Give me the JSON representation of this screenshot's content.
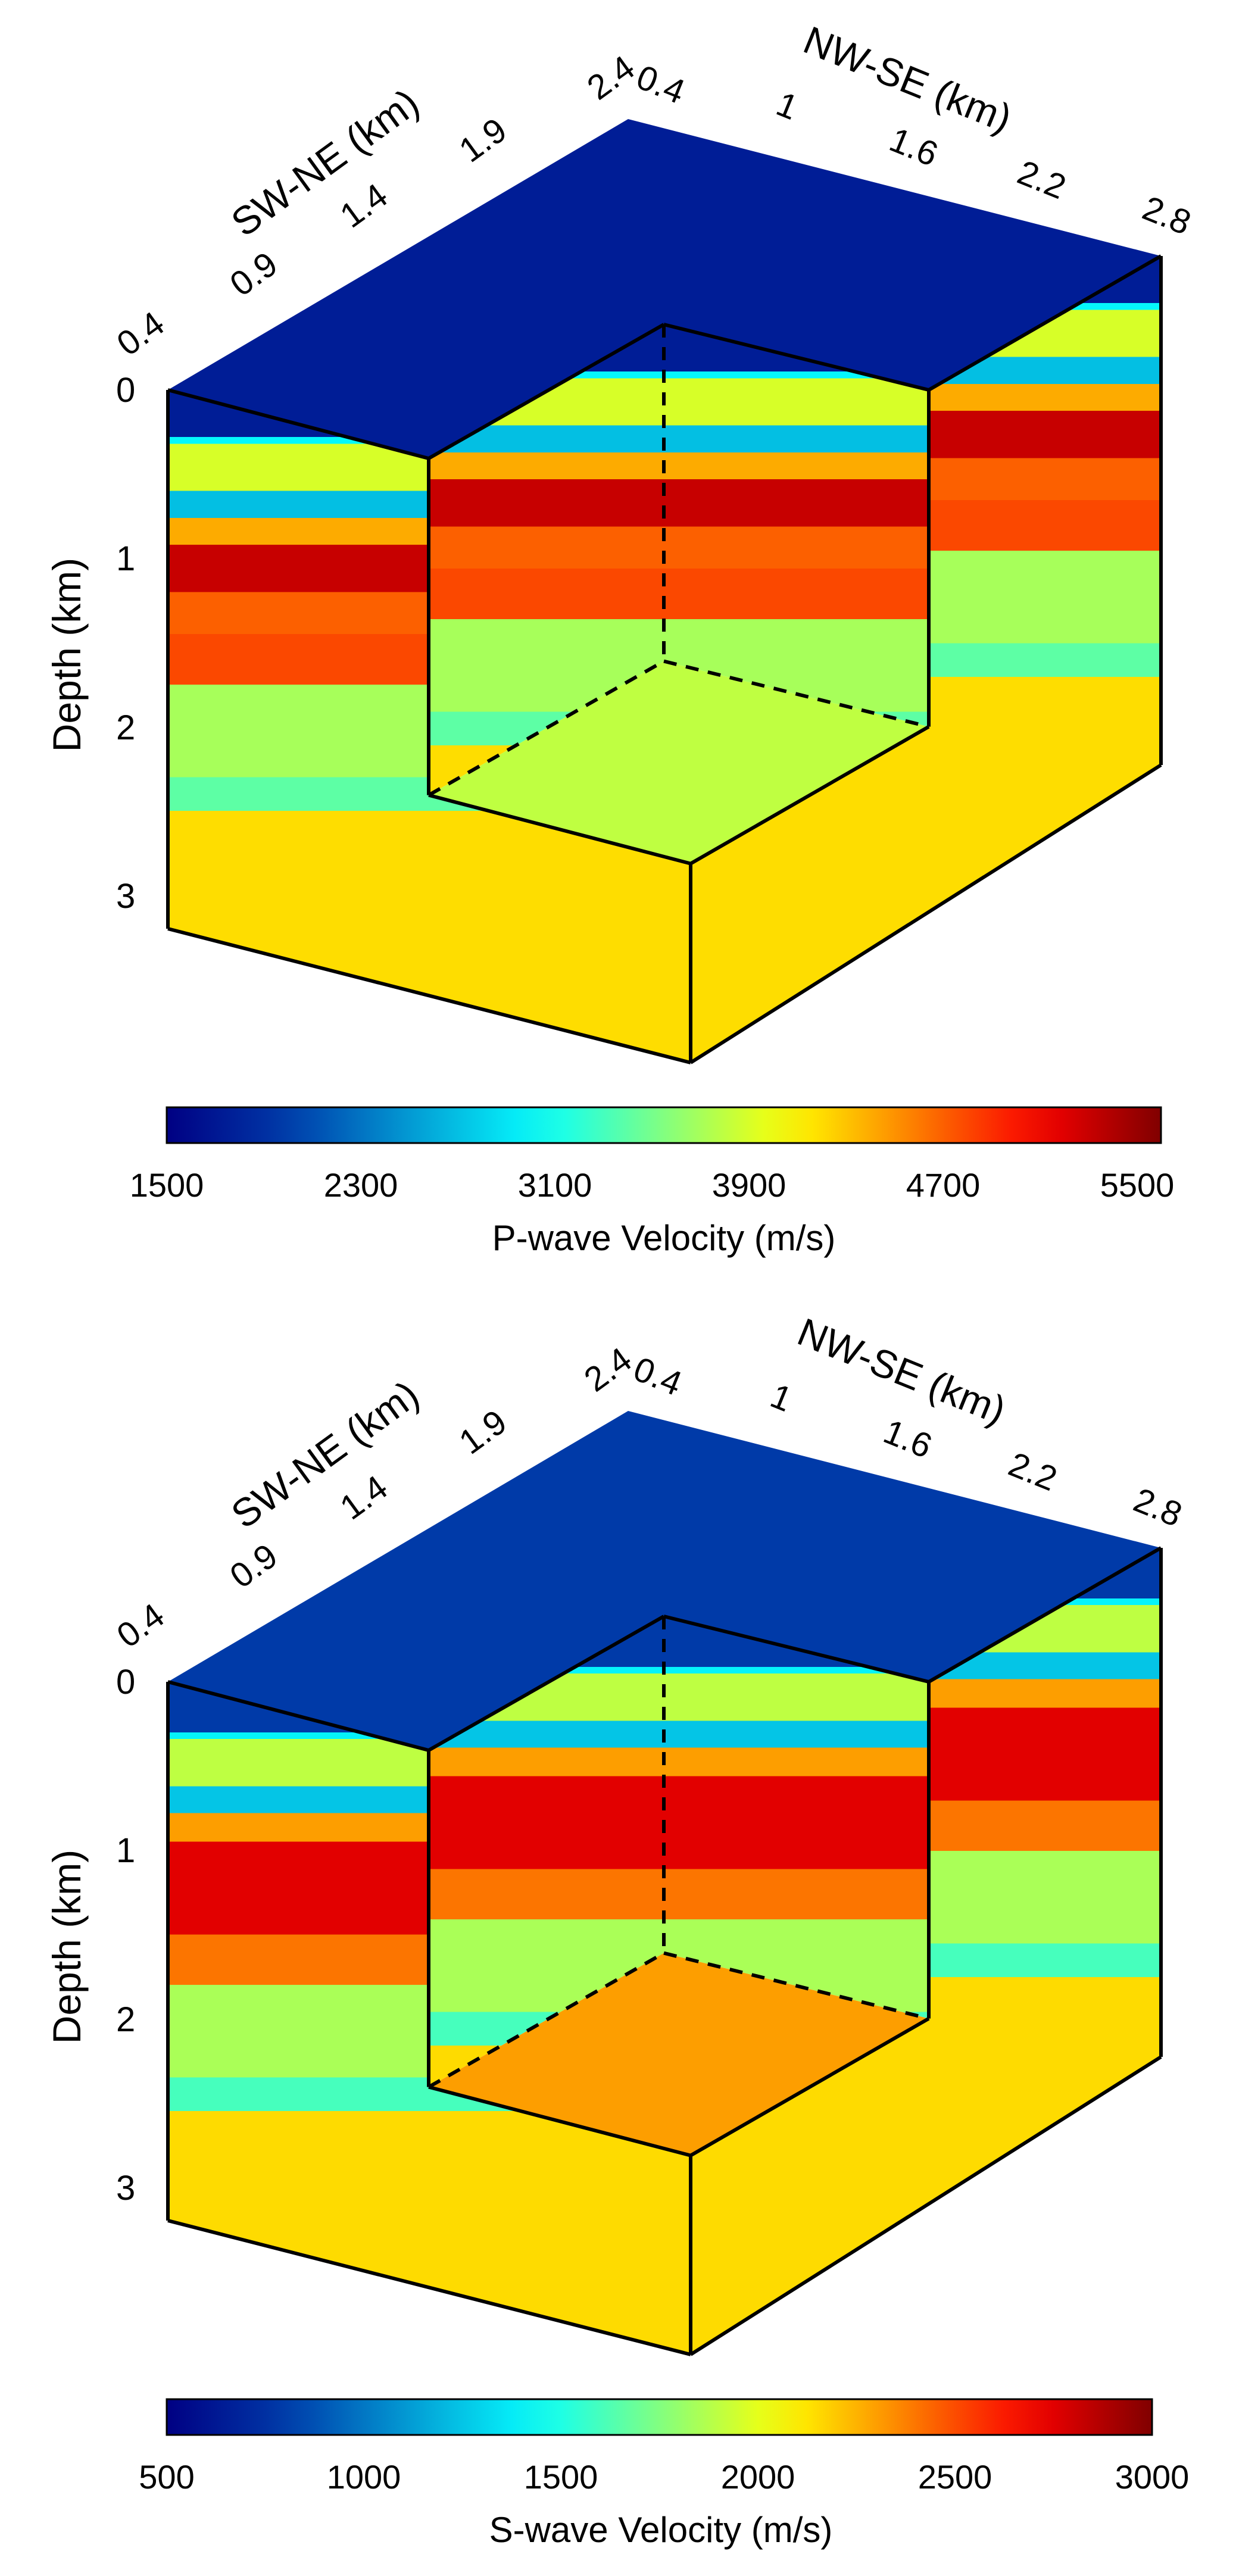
{
  "panels": [
    {
      "id": "p",
      "chart_data": {
        "type": "3d-block-volume",
        "quantity": "P-wave velocity",
        "sw_ne_axis": {
          "label": "SW-NE (km)",
          "ticks": [
            "0.4",
            "0.9",
            "1.4",
            "1.9",
            "2.4"
          ],
          "range": [
            0.4,
            2.4
          ]
        },
        "nw_se_axis": {
          "label": "NW-SE (km)",
          "ticks": [
            "0.4",
            "1",
            "1.6",
            "2.2",
            "2.8"
          ],
          "range": [
            0.4,
            2.8
          ]
        },
        "depth_axis": {
          "label": "Depth (km)",
          "ticks": [
            "0",
            "1",
            "2",
            "3"
          ],
          "range": [
            0,
            3.2
          ]
        },
        "cutout_bottom_depth": 2.0,
        "colorbar": {
          "label": "P-wave Velocity (m/s)",
          "ticks": [
            "1500",
            "2300",
            "3100",
            "3900",
            "4700",
            "5500"
          ],
          "range": [
            1500,
            5600
          ],
          "colormap": "jet"
        },
        "layers": [
          {
            "top": 0.0,
            "bottom": 0.28,
            "value": 1750
          },
          {
            "top": 0.28,
            "bottom": 0.32,
            "value": 3000
          },
          {
            "top": 0.32,
            "bottom": 0.6,
            "value": 3900
          },
          {
            "top": 0.6,
            "bottom": 0.76,
            "value": 2700
          },
          {
            "top": 0.76,
            "bottom": 0.92,
            "value": 4400
          },
          {
            "top": 0.92,
            "bottom": 1.2,
            "value": 5300
          },
          {
            "top": 1.2,
            "bottom": 1.45,
            "value": 4700
          },
          {
            "top": 1.45,
            "bottom": 1.75,
            "value": 4800
          },
          {
            "top": 1.75,
            "bottom": 2.3,
            "value": 3700
          },
          {
            "top": 2.3,
            "bottom": 2.5,
            "value": 3400
          },
          {
            "top": 2.5,
            "bottom": 3.2,
            "value": 4200
          }
        ],
        "cutout_floor_value": 3800
      }
    },
    {
      "id": "s",
      "chart_data": {
        "type": "3d-block-volume",
        "quantity": "S-wave velocity",
        "sw_ne_axis": {
          "label": "SW-NE (km)",
          "ticks": [
            "0.4",
            "0.9",
            "1.4",
            "1.9",
            "2.4"
          ],
          "range": [
            0.4,
            2.4
          ]
        },
        "nw_se_axis": {
          "label": "NW-SE (km)",
          "ticks": [
            "0.4",
            "1",
            "1.6",
            "2.2",
            "2.8"
          ],
          "range": [
            0.4,
            2.8
          ]
        },
        "depth_axis": {
          "label": "Depth (km)",
          "ticks": [
            "0",
            "1",
            "2",
            "3"
          ],
          "range": [
            0,
            3.2
          ]
        },
        "cutout_bottom_depth": 2.0,
        "colorbar": {
          "label": "S-wave Velocity (m/s)",
          "ticks": [
            "500",
            "1000",
            "1500",
            "2000",
            "2500",
            "3000"
          ],
          "range": [
            500,
            3000
          ],
          "colormap": "jet"
        },
        "layers": [
          {
            "top": 0.0,
            "bottom": 0.3,
            "value": 800
          },
          {
            "top": 0.3,
            "bottom": 0.34,
            "value": 1400
          },
          {
            "top": 0.34,
            "bottom": 0.62,
            "value": 1900
          },
          {
            "top": 0.62,
            "bottom": 0.78,
            "value": 1250
          },
          {
            "top": 0.78,
            "bottom": 0.95,
            "value": 2300
          },
          {
            "top": 0.95,
            "bottom": 1.5,
            "value": 2750
          },
          {
            "top": 1.5,
            "bottom": 1.8,
            "value": 2400
          },
          {
            "top": 1.8,
            "bottom": 2.35,
            "value": 1850
          },
          {
            "top": 2.35,
            "bottom": 2.55,
            "value": 1600
          },
          {
            "top": 2.55,
            "bottom": 3.2,
            "value": 2150
          }
        ],
        "cutout_floor_value": 2300
      }
    }
  ]
}
